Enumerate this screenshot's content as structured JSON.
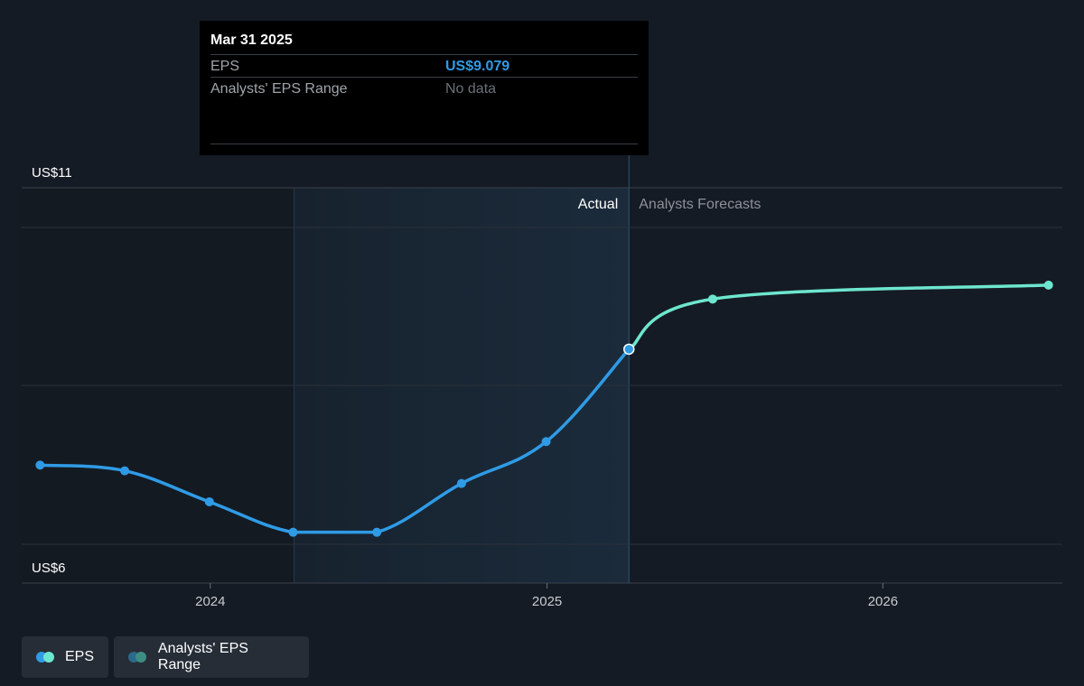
{
  "tooltip": {
    "date": "Mar 31 2025",
    "rows": [
      {
        "label": "EPS",
        "value": "US$9.079"
      },
      {
        "label": "Analysts' EPS Range",
        "value": "No data"
      }
    ]
  },
  "legend": {
    "eps_label": "EPS",
    "range_label": "Analysts' EPS Range"
  },
  "colors": {
    "background": "#151b24",
    "eps_actual": "#2f9be6",
    "eps_forecast": "#6ee6cf",
    "range_dot_1": "#2a6a8a",
    "range_dot_2": "#3e8d84",
    "highlight_band": "#1b2b3b"
  },
  "chart_data": {
    "type": "line",
    "y_axis_labels": [
      "US$11",
      "US$6"
    ],
    "ylim": [
      6,
      11
    ],
    "x_ticks": [
      {
        "label": "2024",
        "x": "2024-01-01"
      },
      {
        "label": "2025",
        "x": "2025-01-01"
      },
      {
        "label": "2026",
        "x": "2026-01-01"
      }
    ],
    "xlim": [
      "2023-06-10",
      "2026-07-15"
    ],
    "highlight_range": [
      "2024-04-01",
      "2025-03-31"
    ],
    "divider_x": "2025-03-31",
    "region_labels": {
      "actual": "Actual",
      "forecast": "Analysts Forecasts"
    },
    "grid": true,
    "series": [
      {
        "name": "EPS",
        "kind": "actual",
        "points": [
          {
            "x": "2023-06-30",
            "y": 7.25
          },
          {
            "x": "2023-09-30",
            "y": 7.16
          },
          {
            "x": "2023-12-31",
            "y": 6.67
          },
          {
            "x": "2024-03-31",
            "y": 6.19
          },
          {
            "x": "2024-06-30",
            "y": 6.19
          },
          {
            "x": "2024-09-30",
            "y": 6.96
          },
          {
            "x": "2024-12-31",
            "y": 7.62
          },
          {
            "x": "2025-03-31",
            "y": 9.079
          }
        ]
      },
      {
        "name": "EPS",
        "kind": "forecast",
        "points": [
          {
            "x": "2025-03-31",
            "y": 9.079
          },
          {
            "x": "2025-06-30",
            "y": 9.87
          },
          {
            "x": "2026-06-30",
            "y": 10.09
          }
        ]
      }
    ]
  }
}
